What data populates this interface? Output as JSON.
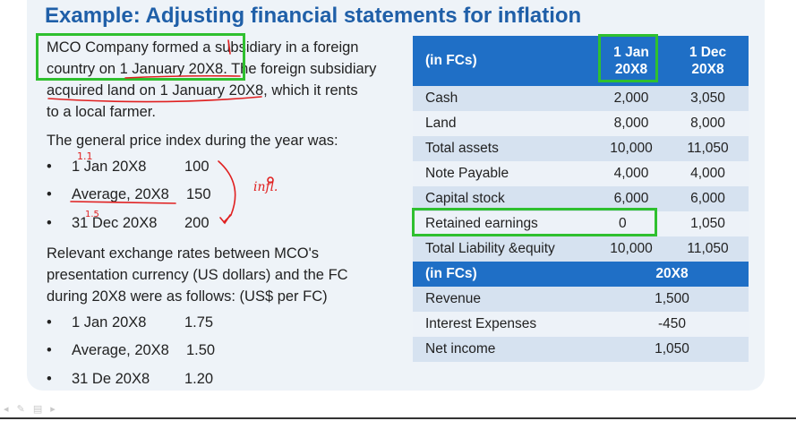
{
  "title": "Example: Adjusting financial statements for inflation",
  "para1": [
    "MCO Company formed a subsidiary in a foreign",
    "country on 1 January 20X8. The foreign subsidiary",
    "acquired land on 1 January 20X8, which it rents",
    "to a local farmer."
  ],
  "price_index_intro": "The general price index during the year was:",
  "price_index": [
    {
      "label": "1 Jan 20X8",
      "value": "100"
    },
    {
      "label": "Average, 20X8",
      "value": "150"
    },
    {
      "label": "31 Dec 20X8",
      "value": "200"
    }
  ],
  "exchange_intro": [
    "Relevant exchange rates between MCO's",
    "presentation currency (US dollars) and the FC",
    "during 20X8 were as follows: (US$ per FC)"
  ],
  "exchange_rates": [
    {
      "label": "1 Jan 20X8",
      "value": "1.75"
    },
    {
      "label": "Average, 20X8",
      "value": "1.50"
    },
    {
      "label": "31 De 20X8",
      "value": "1.20"
    }
  ],
  "bullet_symbol": "•",
  "balance_table": {
    "header": {
      "label": "(in FCs)",
      "col1_l1": "1 Jan",
      "col1_l2": "20X8",
      "col2_l1": "1 Dec",
      "col2_l2": "20X8"
    },
    "rows": [
      {
        "label": "Cash",
        "a": "2,000",
        "b": "3,050"
      },
      {
        "label": "Land",
        "a": "8,000",
        "b": "8,000"
      },
      {
        "label": "Total assets",
        "a": "10,000",
        "b": "11,050"
      },
      {
        "label": "Note Payable",
        "a": "4,000",
        "b": "4,000"
      },
      {
        "label": "Capital stock",
        "a": "6,000",
        "b": "6,000"
      },
      {
        "label": "Retained earnings",
        "a": "0",
        "b": "1,050"
      },
      {
        "label": "Total Liability &equity",
        "a": "10,000",
        "b": "11,050"
      }
    ]
  },
  "income_table": {
    "header": {
      "label": "(in FCs)",
      "col": "20X8"
    },
    "rows": [
      {
        "label": "Revenue",
        "value": "1,500"
      },
      {
        "label": "Interest Expenses",
        "value": "-450"
      },
      {
        "label": "Net income",
        "value": "1,050"
      }
    ]
  },
  "annotations": {
    "handwritten_1": "1.1",
    "handwritten_2": "1.5",
    "handwritten_3": "infl."
  },
  "colors": {
    "title": "#1f5fa8",
    "header_bg": "#1f6fc6",
    "row_dark": "#d6e2f0",
    "row_light": "#edf2f8",
    "highlight_box": "#2fc02f",
    "ink_red": "#e02020"
  }
}
